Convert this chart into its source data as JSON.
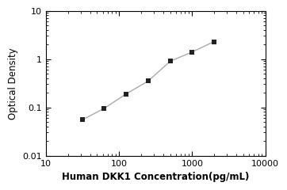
{
  "x": [
    31.25,
    62.5,
    125,
    250,
    500,
    1000,
    2000
  ],
  "y": [
    0.055,
    0.095,
    0.19,
    0.35,
    0.9,
    1.4,
    2.3
  ],
  "xlabel": "Human DKK1 Concentration(pg/mL)",
  "ylabel": "Optical Density",
  "xlim": [
    10,
    10000
  ],
  "ylim": [
    0.01,
    10
  ],
  "xticks": [
    10,
    100,
    1000,
    10000
  ],
  "yticks": [
    0.01,
    0.1,
    1,
    10
  ],
  "xtick_labels": [
    "10",
    "100",
    "1000",
    "10000"
  ],
  "ytick_labels": [
    "0.01",
    "0.1",
    "1",
    "10"
  ],
  "marker": "s",
  "marker_color": "#222222",
  "line_color": "#aaaaaa",
  "marker_size": 4.5,
  "line_width": 1.0,
  "xlabel_fontsize": 8.5,
  "ylabel_fontsize": 8.5,
  "tick_fontsize": 8,
  "background_color": "#ffffff"
}
